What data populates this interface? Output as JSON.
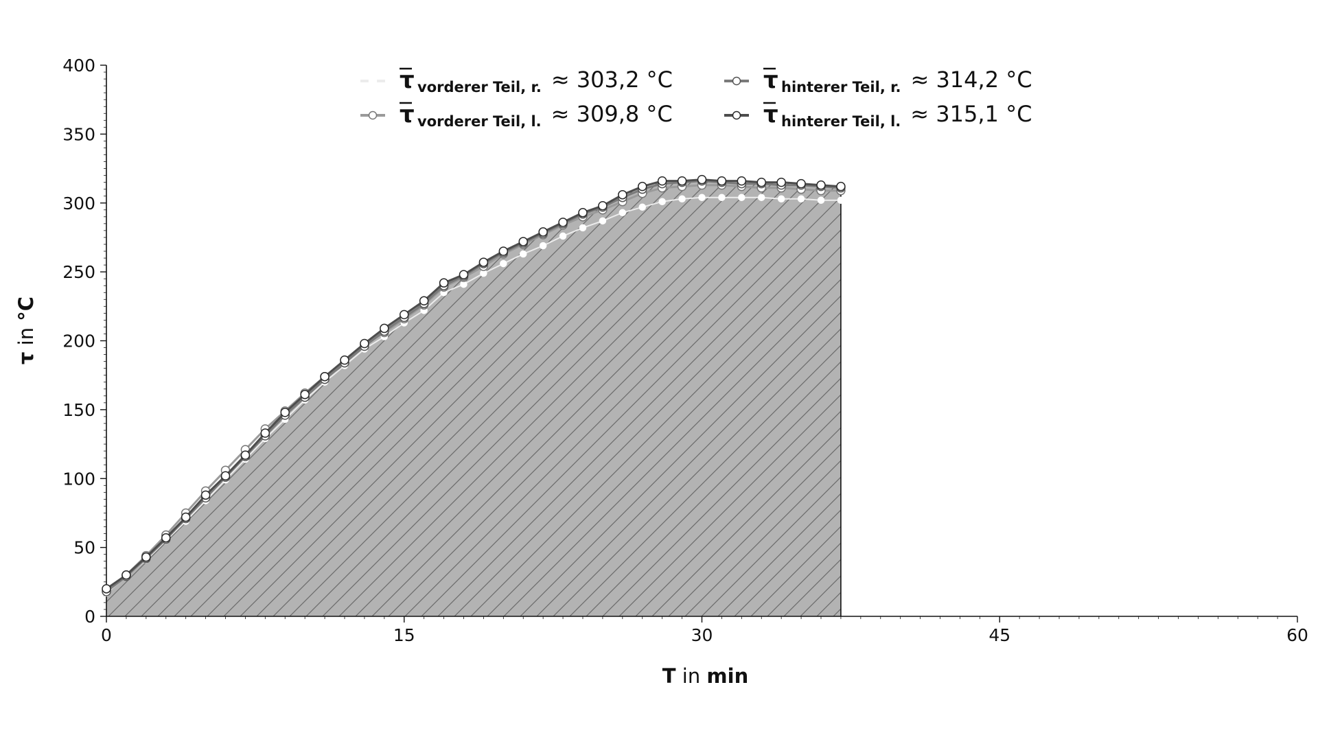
{
  "chart_data": {
    "type": "line",
    "title": "",
    "xlabel_symbol": "T",
    "xlabel_unit": "min",
    "xlabel_in": "in",
    "ylabel_symbol": "τ",
    "ylabel_unit": "°C",
    "ylabel_in": "in",
    "xlim": [
      0,
      60
    ],
    "ylim": [
      0,
      400
    ],
    "x_ticks": [
      0,
      15,
      30,
      45,
      60
    ],
    "y_ticks": [
      0,
      50,
      100,
      150,
      200,
      250,
      300,
      350,
      400
    ],
    "grid": false,
    "legend_position": "top",
    "fill": {
      "hatched": true,
      "x_end": 37,
      "fill_color": "#b3b3b3",
      "hatch_color": "#6b6b6b"
    },
    "x": [
      0,
      1,
      2,
      3,
      4,
      5,
      6,
      7,
      8,
      9,
      10,
      11,
      12,
      13,
      14,
      15,
      16,
      17,
      18,
      19,
      20,
      21,
      22,
      23,
      24,
      25,
      26,
      27,
      28,
      29,
      30,
      31,
      32,
      33,
      34,
      35,
      36,
      37
    ],
    "series": [
      {
        "symbol": "τ",
        "subscript": "vorderer Teil,  r.",
        "mean_label": "≈ 303,2 °C",
        "line_color": "#ececec",
        "marker_fill": "#ffffff",
        "marker_stroke": "#ffffff",
        "values": [
          17,
          29,
          41,
          55,
          69,
          84,
          99,
          114,
          129,
          143,
          157,
          170,
          182,
          194,
          203,
          213,
          222,
          235,
          241,
          249,
          256,
          263,
          269,
          276,
          282,
          287,
          293,
          297,
          301,
          303,
          304,
          304,
          304,
          304,
          303,
          303,
          302,
          302
        ]
      },
      {
        "symbol": "τ",
        "subscript": "vorderer Teil,  l.",
        "mean_label": "≈ 309,8 °C",
        "line_color": "#9a9a9a",
        "marker_fill": "#ffffff",
        "marker_stroke": "#777777",
        "values": [
          19,
          30,
          44,
          59,
          75,
          91,
          106,
          121,
          136,
          149,
          162,
          174,
          184,
          197,
          206,
          216,
          226,
          239,
          246,
          254,
          263,
          270,
          277,
          284,
          290,
          295,
          301,
          307,
          311,
          312,
          313,
          313,
          312,
          311,
          311,
          310,
          309,
          309
        ]
      },
      {
        "symbol": "τ",
        "subscript": "hinterer Teil,  r.",
        "mean_label": "≈ 314,2 °C",
        "line_color": "#7a7a7a",
        "marker_fill": "#ffffff",
        "marker_stroke": "#555555",
        "values": [
          18,
          29,
          42,
          56,
          71,
          86,
          101,
          116,
          131,
          146,
          159,
          172,
          184,
          196,
          207,
          217,
          227,
          240,
          247,
          256,
          264,
          271,
          278,
          285,
          292,
          297,
          304,
          310,
          314,
          315,
          316,
          315,
          314,
          314,
          313,
          313,
          312,
          311
        ]
      },
      {
        "symbol": "τ",
        "subscript": "hinterer Teil,  l.",
        "mean_label": "≈ 315,1 °C",
        "line_color": "#4d4d4d",
        "marker_fill": "#ffffff",
        "marker_stroke": "#2a2a2a",
        "values": [
          20,
          30,
          43,
          57,
          72,
          88,
          102,
          117,
          133,
          148,
          161,
          174,
          186,
          198,
          209,
          219,
          229,
          242,
          248,
          257,
          265,
          272,
          279,
          286,
          293,
          298,
          306,
          312,
          316,
          316,
          317,
          316,
          316,
          315,
          315,
          314,
          313,
          312
        ]
      }
    ]
  }
}
